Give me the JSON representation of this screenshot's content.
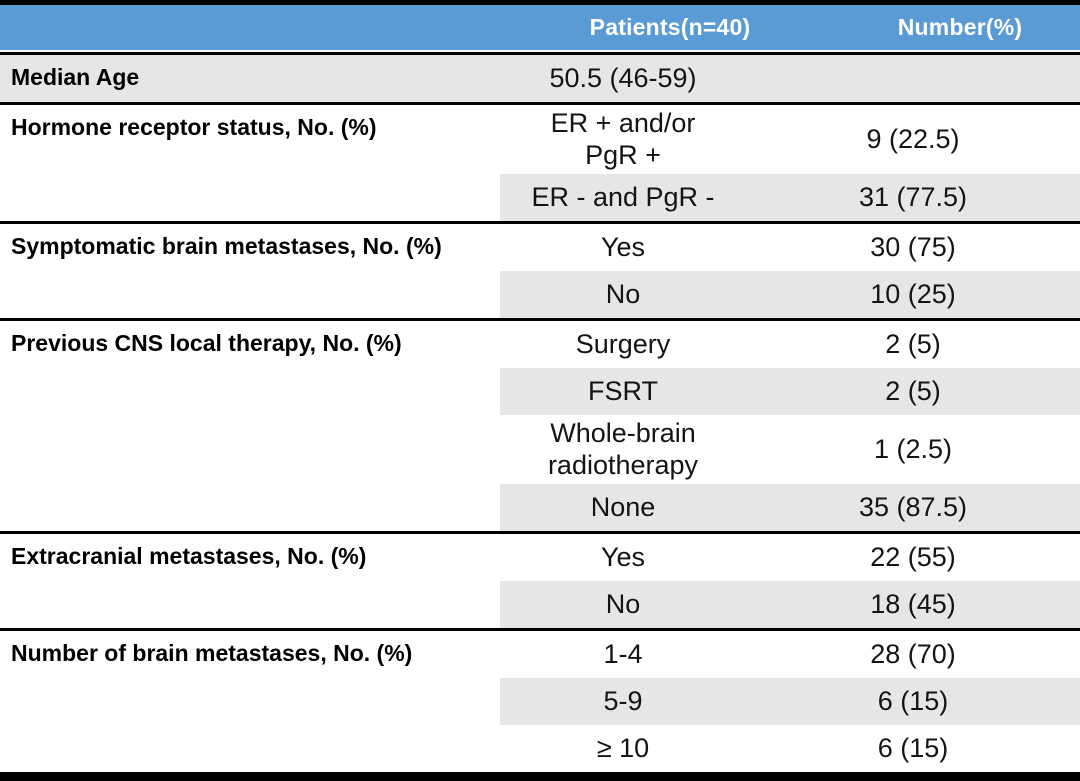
{
  "title": "Patient characteristics table",
  "colors": {
    "header_bg": "#5B9BD5",
    "header_text": "#FFFFFF",
    "band_gray": "#E7E6E6",
    "rule_black": "#000000"
  },
  "header": {
    "label_col": "",
    "patients": "Patients(n=40)",
    "number": "Number(%)"
  },
  "table": {
    "groups": [
      {
        "label": "Median Age",
        "band": "full",
        "rows": [
          {
            "patients": "50.5 (46-59)",
            "number": "",
            "shaded": false
          }
        ]
      },
      {
        "label": "Hormone receptor status, No. (%)",
        "band": "none",
        "rows": [
          {
            "patients": "ER + and/or\nPgR +",
            "number": "9 (22.5)",
            "shaded": false
          },
          {
            "patients": "ER - and PgR -",
            "number": "31 (77.5)",
            "shaded": true
          }
        ]
      },
      {
        "label": "Symptomatic brain metastases, No. (%)",
        "band": "none",
        "rows": [
          {
            "patients": "Yes",
            "number": "30 (75)",
            "shaded": false
          },
          {
            "patients": "No",
            "number": "10 (25)",
            "shaded": true
          }
        ]
      },
      {
        "label": "Previous CNS local therapy, No. (%)",
        "band": "none",
        "rows": [
          {
            "patients": "Surgery",
            "number": "2 (5)",
            "shaded": false
          },
          {
            "patients": "FSRT",
            "number": "2 (5)",
            "shaded": true
          },
          {
            "patients": "Whole-brain\nradiotherapy",
            "number": "1 (2.5)",
            "shaded": false
          },
          {
            "patients": "None",
            "number": "35 (87.5)",
            "shaded": true
          }
        ]
      },
      {
        "label": "Extracranial metastases, No. (%)",
        "band": "none",
        "rows": [
          {
            "patients": "Yes",
            "number": "22 (55)",
            "shaded": false
          },
          {
            "patients": "No",
            "number": "18 (45)",
            "shaded": true
          }
        ]
      },
      {
        "label": "Number of brain metastases, No. (%)",
        "band": "none",
        "rows": [
          {
            "patients": "1-4",
            "number": "28 (70)",
            "shaded": false
          },
          {
            "patients": "5-9",
            "number": "6 (15)",
            "shaded": true
          },
          {
            "patients": "≥ 10",
            "number": "6 (15)",
            "shaded": false
          }
        ]
      }
    ]
  }
}
